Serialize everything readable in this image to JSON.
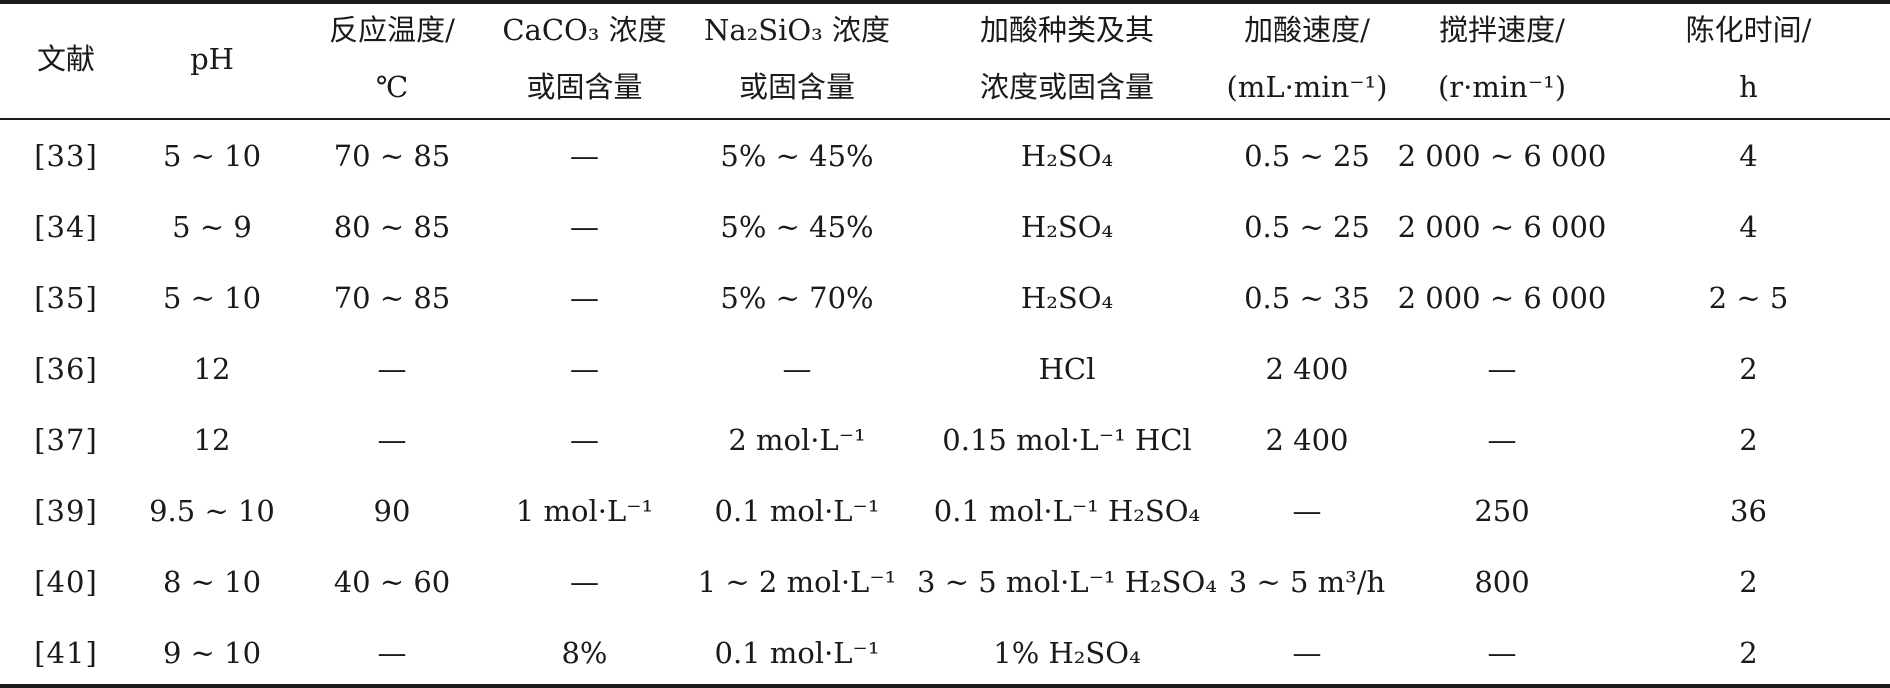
{
  "table": {
    "headers": [
      {
        "key": "ref",
        "lines": [
          "文献"
        ]
      },
      {
        "key": "ph",
        "lines": [
          "pH"
        ]
      },
      {
        "key": "temp",
        "lines": [
          "反应温度/",
          "℃"
        ]
      },
      {
        "key": "caco3",
        "lines": [
          "CaCO₃ 浓度",
          "或固含量"
        ]
      },
      {
        "key": "na2sio3",
        "lines": [
          "Na₂SiO₃ 浓度",
          "或固含量"
        ]
      },
      {
        "key": "acid",
        "lines": [
          "加酸种类及其",
          "浓度或固含量"
        ]
      },
      {
        "key": "acid_rate",
        "lines": [
          "加酸速度/",
          "(mL·min⁻¹)"
        ]
      },
      {
        "key": "stir_rate",
        "lines": [
          "搅拌速度/",
          "(r·min⁻¹)"
        ]
      },
      {
        "key": "aging",
        "lines": [
          "陈化时间/",
          "h"
        ]
      }
    ],
    "rows": [
      [
        "[33]",
        "5 ~ 10",
        "70 ~ 85",
        "—",
        "5% ~ 45%",
        "H₂SO₄",
        "0.5 ~ 25",
        "2 000 ~ 6 000",
        "4"
      ],
      [
        "[34]",
        "5 ~ 9",
        "80 ~ 85",
        "—",
        "5% ~ 45%",
        "H₂SO₄",
        "0.5 ~ 25",
        "2 000 ~ 6 000",
        "4"
      ],
      [
        "[35]",
        "5 ~ 10",
        "70 ~ 85",
        "—",
        "5% ~ 70%",
        "H₂SO₄",
        "0.5 ~ 35",
        "2 000 ~ 6 000",
        "2 ~ 5"
      ],
      [
        "[36]",
        "12",
        "—",
        "—",
        "—",
        "HCl",
        "2 400",
        "—",
        "2"
      ],
      [
        "[37]",
        "12",
        "—",
        "—",
        "2 mol·L⁻¹",
        "0.15 mol·L⁻¹ HCl",
        "2 400",
        "—",
        "2"
      ],
      [
        "[39]",
        "9.5 ~ 10",
        "90",
        "1 mol·L⁻¹",
        "0.1 mol·L⁻¹",
        "0.1 mol·L⁻¹ H₂SO₄",
        "—",
        "250",
        "36"
      ],
      [
        "[40]",
        "8 ~ 10",
        "40 ~ 60",
        "—",
        "1 ~ 2 mol·L⁻¹",
        "3 ~ 5 mol·L⁻¹ H₂SO₄",
        "3 ~ 5 m³/h",
        "800",
        "2"
      ],
      [
        "[41]",
        "9 ~ 10",
        "—",
        "8%",
        "0.1 mol·L⁻¹",
        "1% H₂SO₄",
        "—",
        "—",
        "2"
      ]
    ]
  }
}
